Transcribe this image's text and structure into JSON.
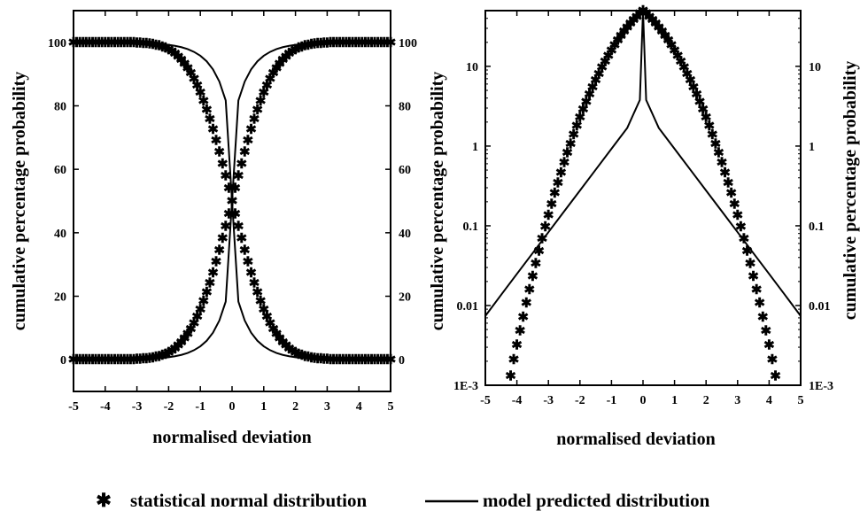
{
  "chart_data": [
    {
      "type": "scatter",
      "panel": "left",
      "xlabel": "normalised deviation",
      "ylabel": "cumulative percentage probability",
      "ylabel_right": "cumulative percentage probability",
      "xlim": [
        -5,
        5
      ],
      "ylim": [
        -10,
        110
      ],
      "y_scale": "linear",
      "x_ticks": [
        -5,
        -4,
        -3,
        -2,
        -1,
        0,
        1,
        2,
        3,
        4,
        5
      ],
      "y_ticks": [
        0,
        20,
        40,
        60,
        80,
        100
      ],
      "x_tick_labels": [
        "-5",
        "-4",
        "-3",
        "-2",
        "-1",
        "0",
        "1",
        "2",
        "3",
        "4",
        "5"
      ],
      "y_tick_labels": [
        "0",
        "20",
        "40",
        "60",
        "80",
        "100"
      ],
      "grid": false,
      "series": [
        {
          "name": "statistical normal distribution",
          "marker": "asterisk",
          "x": [
            -5.0,
            -4.9,
            -4.8,
            -4.7,
            -4.6,
            -4.5,
            -4.4,
            -4.3,
            -4.2,
            -4.1,
            -4.0,
            -3.9,
            -3.8,
            -3.7,
            -3.6,
            -3.5,
            -3.4,
            -3.3,
            -3.2,
            -3.1,
            -3.0,
            -2.9,
            -2.8,
            -2.7,
            -2.6,
            -2.5,
            -2.4,
            -2.3,
            -2.2,
            -2.1,
            -2.0,
            -1.9,
            -1.8,
            -1.7,
            -1.6,
            -1.5,
            -1.4,
            -1.3,
            -1.2,
            -1.1,
            -1.0,
            -0.9,
            -0.8,
            -0.7,
            -0.6,
            -0.5,
            -0.4,
            -0.3,
            -0.2,
            -0.1,
            0.0,
            0.1,
            0.2,
            0.3,
            0.4,
            0.5,
            0.6,
            0.7,
            0.8,
            0.9,
            1.0,
            1.1,
            1.2,
            1.3,
            1.4,
            1.5,
            1.6,
            1.7,
            1.8,
            1.9,
            2.0,
            2.1,
            2.2,
            2.3,
            2.4,
            2.5,
            2.6,
            2.7,
            2.8,
            2.9,
            3.0,
            3.1,
            3.2,
            3.3,
            3.4,
            3.5,
            3.6,
            3.7,
            3.8,
            3.9,
            4.0,
            4.1,
            4.2,
            4.3,
            4.4,
            4.5,
            4.6,
            4.7,
            4.8,
            4.9,
            5.0
          ],
          "y_lower": [
            0,
            0,
            0,
            0,
            0,
            0,
            0,
            0,
            0,
            0,
            0,
            0,
            0.01,
            0.01,
            0.02,
            0.02,
            0.03,
            0.05,
            0.07,
            0.1,
            0.13,
            0.19,
            0.26,
            0.35,
            0.47,
            0.62,
            0.82,
            1.07,
            1.39,
            1.79,
            2.28,
            2.87,
            3.59,
            4.46,
            5.48,
            6.68,
            8.08,
            9.68,
            11.51,
            13.57,
            15.87,
            18.41,
            21.19,
            24.2,
            27.43,
            30.85,
            34.46,
            38.21,
            42.07,
            46.02,
            50,
            53.98,
            57.93,
            61.79,
            65.54,
            69.15,
            72.57,
            75.8,
            78.81,
            81.59,
            84.13,
            86.43,
            88.49,
            90.32,
            91.92,
            93.32,
            94.52,
            95.54,
            96.41,
            97.13,
            97.72,
            98.21,
            98.61,
            98.93,
            99.18,
            99.38,
            99.53,
            99.65,
            99.74,
            99.81,
            99.87,
            99.9,
            99.93,
            99.95,
            99.97,
            99.98,
            99.98,
            99.99,
            99.99,
            100,
            100,
            100,
            100,
            100,
            100,
            100,
            100,
            100,
            100,
            100,
            100
          ],
          "y_upper": [
            100,
            100,
            100,
            100,
            100,
            100,
            100,
            100,
            100,
            100,
            100,
            100,
            99.99,
            99.99,
            99.98,
            99.98,
            99.97,
            99.95,
            99.93,
            99.9,
            99.87,
            99.81,
            99.74,
            99.65,
            99.53,
            99.38,
            99.18,
            98.93,
            98.61,
            98.21,
            97.72,
            97.13,
            96.41,
            95.54,
            94.52,
            93.32,
            91.92,
            90.32,
            88.49,
            86.43,
            84.13,
            81.59,
            78.81,
            75.8,
            72.57,
            69.15,
            65.54,
            61.79,
            57.93,
            53.98,
            50,
            46.02,
            42.07,
            38.21,
            34.46,
            30.85,
            27.43,
            24.2,
            21.19,
            18.41,
            15.87,
            13.57,
            11.51,
            9.68,
            8.08,
            6.68,
            5.48,
            4.46,
            3.59,
            2.87,
            2.28,
            1.79,
            1.39,
            1.07,
            0.82,
            0.62,
            0.47,
            0.35,
            0.26,
            0.19,
            0.13,
            0.1,
            0.07,
            0.05,
            0.03,
            0.02,
            0.02,
            0.01,
            0.01,
            0,
            0,
            0,
            0,
            0,
            0,
            0,
            0,
            0,
            0,
            0,
            0
          ]
        },
        {
          "name": "model predicted distribution",
          "marker": "line",
          "x": [
            -5.0,
            -4.8,
            -4.6,
            -4.4,
            -4.2,
            -4.0,
            -3.8,
            -3.6,
            -3.4,
            -3.2,
            -3.0,
            -2.8,
            -2.6,
            -2.4,
            -2.2,
            -2.0,
            -1.8,
            -1.6,
            -1.4,
            -1.2,
            -1.0,
            -0.8,
            -0.6,
            -0.4,
            -0.2,
            0.0,
            0.2,
            0.4,
            0.6,
            0.8,
            1.0,
            1.2,
            1.4,
            1.6,
            1.8,
            2.0,
            2.2,
            2.4,
            2.6,
            2.8,
            3.0,
            3.2,
            3.4,
            3.6,
            3.8,
            4.0,
            4.2,
            4.4,
            4.6,
            4.8,
            5.0
          ],
          "y_lower": [
            0.01,
            0.01,
            0.01,
            0.02,
            0.02,
            0.03,
            0.04,
            0.06,
            0.08,
            0.11,
            0.15,
            0.21,
            0.29,
            0.4,
            0.56,
            0.78,
            1.09,
            1.52,
            2.13,
            3.0,
            4.22,
            5.97,
            8.52,
            12.35,
            18.31,
            50,
            81.69,
            87.65,
            91.48,
            94.03,
            95.78,
            97.0,
            97.87,
            98.48,
            98.91,
            99.22,
            99.44,
            99.6,
            99.71,
            99.79,
            99.85,
            99.89,
            99.92,
            99.94,
            99.96,
            99.97,
            99.98,
            99.98,
            99.99,
            99.99,
            99.99
          ],
          "y_upper": [
            99.99,
            99.99,
            99.99,
            99.98,
            99.98,
            99.97,
            99.96,
            99.94,
            99.92,
            99.89,
            99.85,
            99.79,
            99.71,
            99.6,
            99.44,
            99.22,
            98.91,
            98.48,
            97.87,
            97.0,
            95.78,
            94.03,
            91.48,
            87.65,
            81.69,
            50,
            18.31,
            12.35,
            8.52,
            5.97,
            4.22,
            3.0,
            2.13,
            1.52,
            1.09,
            0.78,
            0.56,
            0.4,
            0.29,
            0.21,
            0.15,
            0.11,
            0.08,
            0.06,
            0.04,
            0.03,
            0.02,
            0.02,
            0.01,
            0.01,
            0.01
          ]
        }
      ]
    },
    {
      "type": "scatter",
      "panel": "right",
      "xlabel": "normalised deviation",
      "ylabel": "cumulative percentage probability",
      "ylabel_right": "cumulative percentage probability",
      "xlim": [
        -5,
        5
      ],
      "ylim": [
        0.001,
        50
      ],
      "y_scale": "log",
      "x_ticks": [
        -5,
        -4,
        -3,
        -2,
        -1,
        0,
        1,
        2,
        3,
        4,
        5
      ],
      "y_ticks": [
        0.001,
        0.01,
        0.1,
        1,
        10
      ],
      "x_tick_labels": [
        "-5",
        "-4",
        "-3",
        "-2",
        "-1",
        "0",
        "1",
        "2",
        "3",
        "4",
        "5"
      ],
      "y_tick_labels": [
        "1E-3",
        "0.01",
        "0.1",
        "1",
        "10"
      ],
      "grid": false,
      "series": [
        {
          "name": "statistical normal distribution",
          "marker": "asterisk",
          "x": [
            -4.2,
            -4.1,
            -4.0,
            -3.9,
            -3.8,
            -3.7,
            -3.6,
            -3.5,
            -3.4,
            -3.3,
            -3.2,
            -3.1,
            -3.0,
            -2.9,
            -2.8,
            -2.7,
            -2.6,
            -2.5,
            -2.4,
            -2.3,
            -2.2,
            -2.1,
            -2.0,
            -1.9,
            -1.8,
            -1.7,
            -1.6,
            -1.5,
            -1.4,
            -1.3,
            -1.2,
            -1.1,
            -1.0,
            -0.9,
            -0.8,
            -0.7,
            -0.6,
            -0.5,
            -0.4,
            -0.3,
            -0.2,
            -0.1,
            0.0,
            0.1,
            0.2,
            0.3,
            0.4,
            0.5,
            0.6,
            0.7,
            0.8,
            0.9,
            1.0,
            1.1,
            1.2,
            1.3,
            1.4,
            1.5,
            1.6,
            1.7,
            1.8,
            1.9,
            2.0,
            2.1,
            2.2,
            2.3,
            2.4,
            2.5,
            2.6,
            2.7,
            2.8,
            2.9,
            3.0,
            3.1,
            3.2,
            3.3,
            3.4,
            3.5,
            3.6,
            3.7,
            3.8,
            3.9,
            4.0,
            4.1,
            4.2
          ],
          "y": [
            0.0013,
            0.0021,
            0.0032,
            0.0048,
            0.0072,
            0.0108,
            0.0159,
            0.0233,
            0.0337,
            0.0483,
            0.0687,
            0.0968,
            0.135,
            0.187,
            0.256,
            0.347,
            0.466,
            0.621,
            0.82,
            1.07,
            1.39,
            1.79,
            2.28,
            2.87,
            3.59,
            4.46,
            5.48,
            6.68,
            8.08,
            9.68,
            11.51,
            13.57,
            15.87,
            18.41,
            21.19,
            24.2,
            27.43,
            30.85,
            34.46,
            38.21,
            42.07,
            46.02,
            50,
            46.02,
            42.07,
            38.21,
            34.46,
            30.85,
            27.43,
            24.2,
            21.19,
            18.41,
            15.87,
            13.57,
            11.51,
            9.68,
            8.08,
            6.68,
            5.48,
            4.46,
            3.59,
            2.87,
            2.28,
            1.79,
            1.39,
            1.07,
            0.82,
            0.621,
            0.466,
            0.347,
            0.256,
            0.187,
            0.135,
            0.0968,
            0.0687,
            0.0483,
            0.0337,
            0.0233,
            0.0159,
            0.0108,
            0.0072,
            0.0048,
            0.0032,
            0.0021,
            0.0013
          ]
        },
        {
          "name": "model predicted distribution",
          "marker": "line",
          "x": [
            -5.0,
            -4.5,
            -4.0,
            -3.5,
            -3.0,
            -2.5,
            -2.0,
            -1.5,
            -1.0,
            -0.5,
            -0.3,
            -0.1,
            0.0,
            0.1,
            0.3,
            0.5,
            1.0,
            1.5,
            2.0,
            2.5,
            3.0,
            3.5,
            4.0,
            4.5,
            5.0
          ],
          "y": [
            0.0074,
            0.0136,
            0.0249,
            0.0454,
            0.0831,
            0.152,
            0.277,
            0.506,
            0.924,
            1.69,
            2.53,
            3.79,
            50,
            3.79,
            2.53,
            1.69,
            0.924,
            0.506,
            0.277,
            0.152,
            0.0831,
            0.0454,
            0.0249,
            0.0136,
            0.0074
          ]
        }
      ]
    }
  ],
  "legend": {
    "marker_glyph": "✱",
    "star_text": "statistical  normal  distribution",
    "line_text": "model  predicted  distribution"
  }
}
